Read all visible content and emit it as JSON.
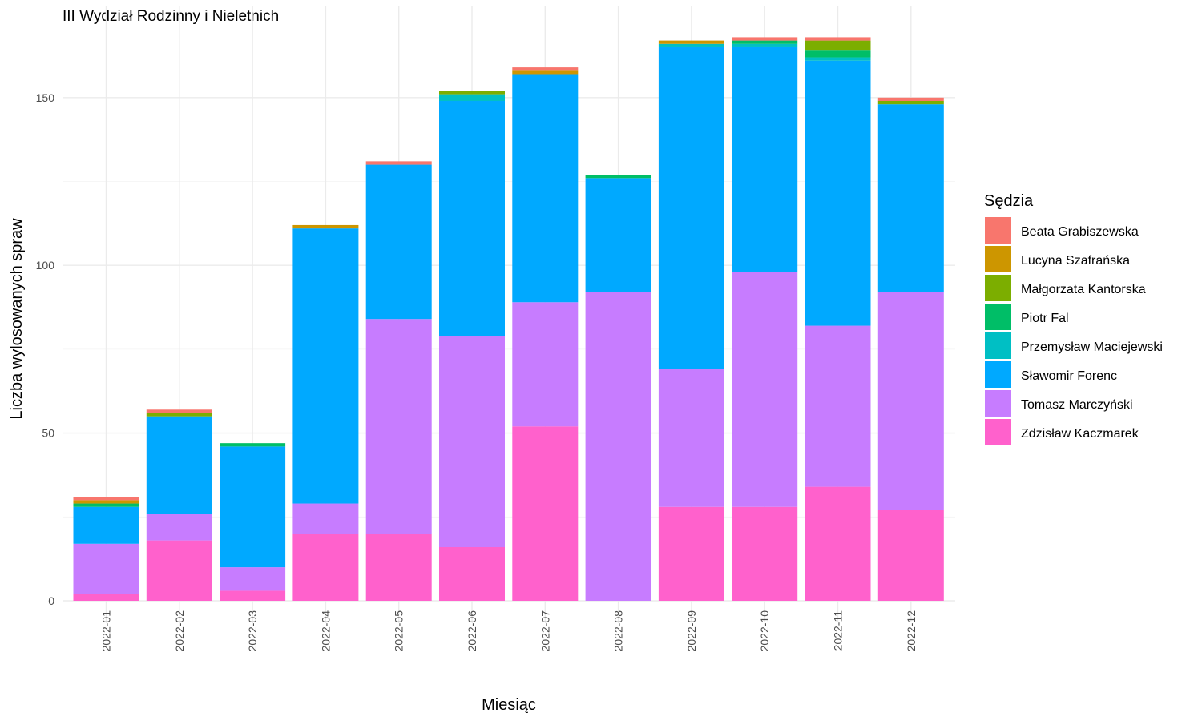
{
  "chart_data": {
    "type": "bar",
    "stacked": true,
    "title": "III Wydział Rodzinny i Nieletnich",
    "xlabel": "Miesiąc",
    "ylabel": "Liczba wylosowanych spraw",
    "ylim": [
      0,
      170
    ],
    "y_ticks": [
      0,
      50,
      100,
      150
    ],
    "grid": true,
    "legend_title": "Sędzia",
    "legend_position": "right",
    "categories": [
      "2022-01",
      "2022-02",
      "2022-03",
      "2022-04",
      "2022-05",
      "2022-06",
      "2022-07",
      "2022-08",
      "2022-09",
      "2022-10",
      "2022-11",
      "2022-12"
    ],
    "series": [
      {
        "name": "Zdzisław Kaczmarek",
        "color": "#FF61CC",
        "values": [
          2,
          18,
          3,
          20,
          20,
          16,
          52,
          0,
          28,
          28,
          34,
          27
        ]
      },
      {
        "name": "Tomasz Marczyński",
        "color": "#C77CFF",
        "values": [
          15,
          8,
          7,
          9,
          64,
          63,
          37,
          92,
          41,
          70,
          48,
          65
        ]
      },
      {
        "name": "Sławomir Forenc",
        "color": "#00A9FF",
        "values": [
          11,
          29,
          36,
          82,
          46,
          70,
          68,
          34,
          96,
          67,
          79,
          56
        ]
      },
      {
        "name": "Przemysław Maciejewski",
        "color": "#00BFC4",
        "values": [
          0,
          0,
          0,
          0,
          0,
          2,
          0,
          0,
          1,
          1,
          1,
          0
        ]
      },
      {
        "name": "Piotr Fal",
        "color": "#00BE67",
        "values": [
          1,
          0,
          1,
          0,
          0,
          0,
          0,
          1,
          0,
          1,
          2,
          0
        ]
      },
      {
        "name": "Małgorzata Kantorska",
        "color": "#7CAE00",
        "values": [
          0,
          1,
          0,
          0,
          0,
          1,
          0,
          0,
          0,
          0,
          3,
          1
        ]
      },
      {
        "name": "Lucyna Szafrańska",
        "color": "#CD9600",
        "values": [
          1,
          0,
          0,
          1,
          0,
          0,
          1,
          0,
          1,
          0,
          0,
          0
        ]
      },
      {
        "name": "Beata Grabiszewska",
        "color": "#F8766D",
        "values": [
          1,
          1,
          0,
          0,
          1,
          0,
          1,
          0,
          0,
          1,
          1,
          1
        ]
      }
    ],
    "legend_order": [
      "Beata Grabiszewska",
      "Lucyna Szafrańska",
      "Małgorzata Kantorska",
      "Piotr Fal",
      "Przemysław Maciejewski",
      "Sławomir Forenc",
      "Tomasz Marczyński",
      "Zdzisław Kaczmarek"
    ]
  }
}
